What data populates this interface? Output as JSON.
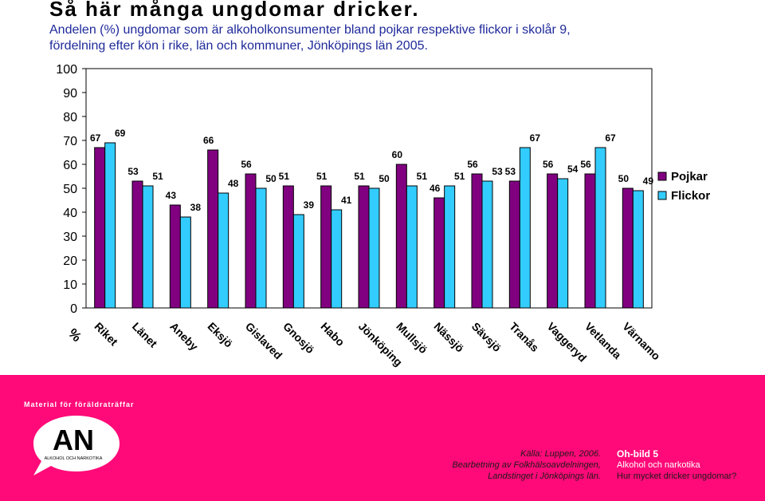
{
  "header": {
    "title": "Så här många ungdomar dricker.",
    "subtitle_line1": "Andelen (%) ungdomar som är alkoholkonsumenter bland pojkar respektive flickor i skolår 9,",
    "subtitle_line2": "fördelning efter kön i rike, län och kommuner, Jönköpings län 2005."
  },
  "chart_data": {
    "type": "bar",
    "ylabel": "%",
    "ylim": [
      0,
      100
    ],
    "yticks": [
      0,
      10,
      20,
      30,
      40,
      50,
      60,
      70,
      80,
      90,
      100
    ],
    "grid": false,
    "legend_position": "right",
    "categories": [
      "Riket",
      "Länet",
      "Aneby",
      "Eksjö",
      "Gislaved",
      "Gnosjö",
      "Habo",
      "Jönköping",
      "Mullsjö",
      "Nässjö",
      "Sävsjö",
      "Tranås",
      "Vaggeryd",
      "Vetlanda",
      "Värnamo"
    ],
    "series": [
      {
        "name": "Pojkar",
        "color": "#800080",
        "values": [
          67,
          53,
          43,
          66,
          56,
          51,
          51,
          51,
          60,
          46,
          56,
          53,
          56,
          56,
          50
        ]
      },
      {
        "name": "Flickor",
        "color": "#33ccff",
        "values": [
          69,
          51,
          38,
          48,
          50,
          39,
          41,
          50,
          51,
          51,
          53,
          67,
          54,
          67,
          49
        ]
      }
    ]
  },
  "footer": {
    "material_label": "Material för föräldraträffar",
    "logo_text": "AN",
    "logo_subtext": "ALKOHOL OCH NARKOTIKA",
    "source_line1": "Källa: Luppen, 2006.",
    "source_line2": "Bearbetning av Folkhälsoavdelningen,",
    "source_line3": "Landstinget i Jönköpings län.",
    "oh_title": "Oh-bild 5",
    "oh_subtitle": "Alkohol och narkotika",
    "oh_question": "Hur mycket dricker ungdomar?"
  },
  "colors": {
    "footer_bg": "#ff0a78",
    "pojkar": "#800080",
    "flickor": "#33ccff"
  }
}
